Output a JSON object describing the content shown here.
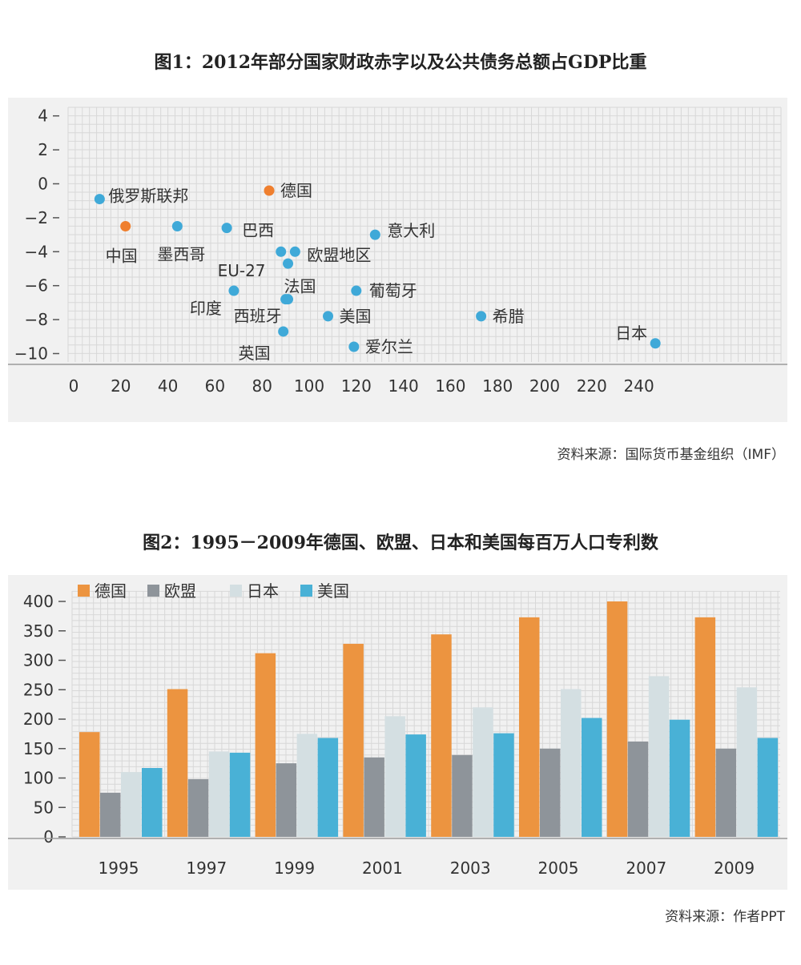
{
  "figure1": {
    "title": "图1：2012年部分国家财政赤字以及公共债务总额占GDP比重",
    "source": "资料来源：国际货币基金组织（IMF）"
  },
  "figure2": {
    "title": "图2：1995－2009年德国、欧盟、日本和美国每百万人口专利数",
    "source": "资料来源：作者PPT"
  },
  "chart_data": [
    {
      "type": "scatter",
      "title": "图1：2012年部分国家财政赤字以及公共债务总额占GDP比重",
      "xlabel": "",
      "ylabel": "",
      "xlim": [
        0,
        240
      ],
      "ylim": [
        -10,
        4
      ],
      "x_ticks": [
        "0",
        "20",
        "40",
        "60",
        "80",
        "100",
        "120",
        "140",
        "160",
        "180",
        "200",
        "220",
        "240"
      ],
      "y_ticks": [
        "4",
        "2",
        "0",
        "−2",
        "−4",
        "−6",
        "−8",
        "−10"
      ],
      "grid": true,
      "colors": {
        "highlight": "#ef7f2e",
        "default": "#3fa9d8"
      },
      "points": [
        {
          "label": "俄罗斯联邦",
          "x": 11,
          "y": -0.9,
          "color": "#3fa9d8"
        },
        {
          "label": "中国",
          "x": 22,
          "y": -2.5,
          "color": "#ef7f2e"
        },
        {
          "label": "墨西哥",
          "x": 44,
          "y": -2.5,
          "color": "#3fa9d8"
        },
        {
          "label": "巴西",
          "x": 65,
          "y": -2.6,
          "color": "#3fa9d8"
        },
        {
          "label": "印度",
          "x": 68,
          "y": -6.3,
          "color": "#3fa9d8"
        },
        {
          "label": "德国",
          "x": 83,
          "y": -0.4,
          "color": "#ef7f2e"
        },
        {
          "label": "EU-27",
          "x": 91,
          "y": -4.7,
          "color": "#3fa9d8"
        },
        {
          "label": "欧盟地区",
          "x": 94,
          "y": -4.0,
          "color": "#3fa9d8"
        },
        {
          "label": "",
          "x": 88,
          "y": -4.0,
          "color": "#3fa9d8"
        },
        {
          "label": "法国",
          "x": 91,
          "y": -6.8,
          "color": "#3fa9d8"
        },
        {
          "label": "西班牙",
          "x": 90,
          "y": -6.8,
          "color": "#3fa9d8"
        },
        {
          "label": "英国",
          "x": 89,
          "y": -8.7,
          "color": "#3fa9d8"
        },
        {
          "label": "美国",
          "x": 108,
          "y": -7.8,
          "color": "#3fa9d8"
        },
        {
          "label": "葡萄牙",
          "x": 120,
          "y": -6.3,
          "color": "#3fa9d8"
        },
        {
          "label": "爱尔兰",
          "x": 119,
          "y": -9.6,
          "color": "#3fa9d8"
        },
        {
          "label": "意大利",
          "x": 128,
          "y": -3.0,
          "color": "#3fa9d8"
        },
        {
          "label": "希腊",
          "x": 173,
          "y": -7.8,
          "color": "#3fa9d8"
        },
        {
          "label": "日本",
          "x": 247,
          "y": -9.4,
          "color": "#3fa9d8"
        }
      ]
    },
    {
      "type": "bar",
      "title": "图2：1995－2009年德国、欧盟、日本和美国每百万人口专利数",
      "categories": [
        "1995",
        "1997",
        "1999",
        "2001",
        "2003",
        "2005",
        "2007",
        "2009"
      ],
      "ylim": [
        0,
        400
      ],
      "y_ticks": [
        "400",
        "350",
        "300",
        "250",
        "200",
        "150",
        "100",
        "50",
        "0"
      ],
      "grid": true,
      "legend_position": "top-left",
      "series": [
        {
          "name": "德国",
          "color": "#ec9440",
          "values": [
            178,
            251,
            312,
            328,
            344,
            373,
            400,
            373
          ]
        },
        {
          "name": "欧盟",
          "color": "#8e949a",
          "values": [
            75,
            98,
            125,
            135,
            139,
            150,
            162,
            150
          ]
        },
        {
          "name": "日本",
          "color": "#d4dfe2",
          "values": [
            110,
            145,
            175,
            205,
            220,
            251,
            273,
            254
          ]
        },
        {
          "name": "美国",
          "color": "#49b1d6",
          "values": [
            117,
            143,
            168,
            174,
            176,
            202,
            199,
            168
          ]
        }
      ]
    }
  ]
}
